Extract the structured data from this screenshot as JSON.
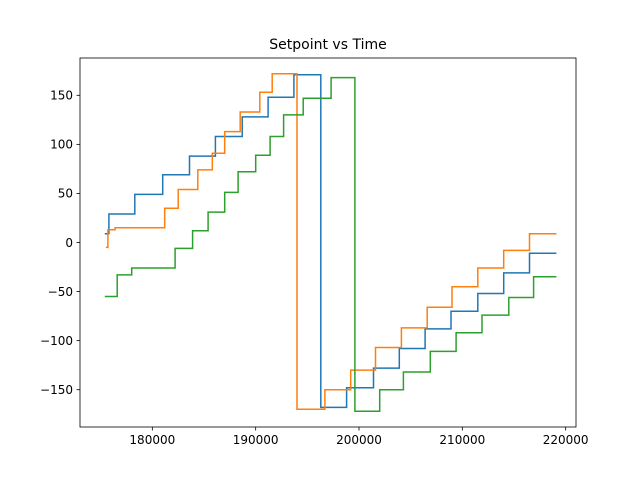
{
  "chart_data": {
    "type": "line",
    "title": "Setpoint vs Time",
    "xlabel": "",
    "ylabel": "",
    "xlim": [
      173000,
      221000
    ],
    "ylim": [
      -188,
      188
    ],
    "grid": false,
    "x_ticks": [
      180000,
      190000,
      200000,
      210000,
      220000
    ],
    "x_tick_labels": [
      "180000",
      "190000",
      "200000",
      "210000",
      "220000"
    ],
    "y_ticks": [
      -150,
      -100,
      -50,
      0,
      50,
      100,
      150
    ],
    "y_tick_labels": [
      "−150",
      "−100",
      "−50",
      "0",
      "50",
      "100",
      "150"
    ],
    "series": [
      {
        "name": "series-1",
        "color": "#1f77b4",
        "points": [
          [
            175400,
            9
          ],
          [
            175800,
            9
          ],
          [
            175800,
            29
          ],
          [
            178300,
            29
          ],
          [
            178300,
            49
          ],
          [
            181000,
            49
          ],
          [
            181000,
            69
          ],
          [
            183600,
            69
          ],
          [
            183600,
            88
          ],
          [
            186100,
            88
          ],
          [
            186100,
            108
          ],
          [
            188700,
            108
          ],
          [
            188700,
            128
          ],
          [
            191200,
            128
          ],
          [
            191200,
            148
          ],
          [
            193700,
            148
          ],
          [
            193700,
            171
          ],
          [
            196300,
            171
          ],
          [
            196300,
            -168
          ],
          [
            198800,
            -168
          ],
          [
            198800,
            -148
          ],
          [
            201400,
            -148
          ],
          [
            201400,
            -128
          ],
          [
            203900,
            -128
          ],
          [
            203900,
            -108
          ],
          [
            206400,
            -108
          ],
          [
            206400,
            -88
          ],
          [
            208900,
            -88
          ],
          [
            208900,
            -70
          ],
          [
            211500,
            -70
          ],
          [
            211500,
            -52
          ],
          [
            214000,
            -52
          ],
          [
            214000,
            -31
          ],
          [
            216500,
            -31
          ],
          [
            216500,
            -11
          ],
          [
            219100,
            -11
          ]
        ]
      },
      {
        "name": "series-2",
        "color": "#ff7f0e",
        "points": [
          [
            175500,
            -5
          ],
          [
            175700,
            -5
          ],
          [
            175700,
            13
          ],
          [
            176400,
            13
          ],
          [
            176400,
            15
          ],
          [
            181200,
            15
          ],
          [
            181200,
            35
          ],
          [
            182500,
            35
          ],
          [
            182500,
            54
          ],
          [
            184400,
            54
          ],
          [
            184400,
            74
          ],
          [
            185800,
            74
          ],
          [
            185800,
            91
          ],
          [
            187000,
            91
          ],
          [
            187000,
            113
          ],
          [
            188500,
            113
          ],
          [
            188500,
            133
          ],
          [
            190400,
            133
          ],
          [
            190400,
            153
          ],
          [
            191600,
            153
          ],
          [
            191600,
            172
          ],
          [
            194000,
            172
          ],
          [
            194000,
            -170
          ],
          [
            196700,
            -170
          ],
          [
            196700,
            -150
          ],
          [
            199200,
            -150
          ],
          [
            199200,
            -130
          ],
          [
            201600,
            -130
          ],
          [
            201600,
            -107
          ],
          [
            204100,
            -107
          ],
          [
            204100,
            -87
          ],
          [
            206600,
            -87
          ],
          [
            206600,
            -66
          ],
          [
            209000,
            -66
          ],
          [
            209000,
            -45
          ],
          [
            211500,
            -45
          ],
          [
            211500,
            -26
          ],
          [
            214000,
            -26
          ],
          [
            214000,
            -8
          ],
          [
            216500,
            -8
          ],
          [
            216500,
            9
          ],
          [
            219100,
            9
          ]
        ]
      },
      {
        "name": "series-3",
        "color": "#2ca02c",
        "points": [
          [
            175400,
            -55
          ],
          [
            176600,
            -55
          ],
          [
            176600,
            -33
          ],
          [
            178000,
            -33
          ],
          [
            178000,
            -26
          ],
          [
            182200,
            -26
          ],
          [
            182200,
            -6
          ],
          [
            183900,
            -6
          ],
          [
            183900,
            12
          ],
          [
            185400,
            12
          ],
          [
            185400,
            31
          ],
          [
            187000,
            31
          ],
          [
            187000,
            51
          ],
          [
            188300,
            51
          ],
          [
            188300,
            72
          ],
          [
            190000,
            72
          ],
          [
            190000,
            89
          ],
          [
            191400,
            89
          ],
          [
            191400,
            108
          ],
          [
            192700,
            108
          ],
          [
            192700,
            130
          ],
          [
            194600,
            130
          ],
          [
            194600,
            147
          ],
          [
            197300,
            147
          ],
          [
            197300,
            168
          ],
          [
            199600,
            168
          ],
          [
            199600,
            -172
          ],
          [
            202000,
            -172
          ],
          [
            202000,
            -150
          ],
          [
            204300,
            -150
          ],
          [
            204300,
            -132
          ],
          [
            206900,
            -132
          ],
          [
            206900,
            -111
          ],
          [
            209400,
            -111
          ],
          [
            209400,
            -92
          ],
          [
            211900,
            -92
          ],
          [
            211900,
            -74
          ],
          [
            214500,
            -74
          ],
          [
            214500,
            -56
          ],
          [
            216900,
            -56
          ],
          [
            216900,
            -35
          ],
          [
            219100,
            -35
          ]
        ]
      }
    ]
  }
}
